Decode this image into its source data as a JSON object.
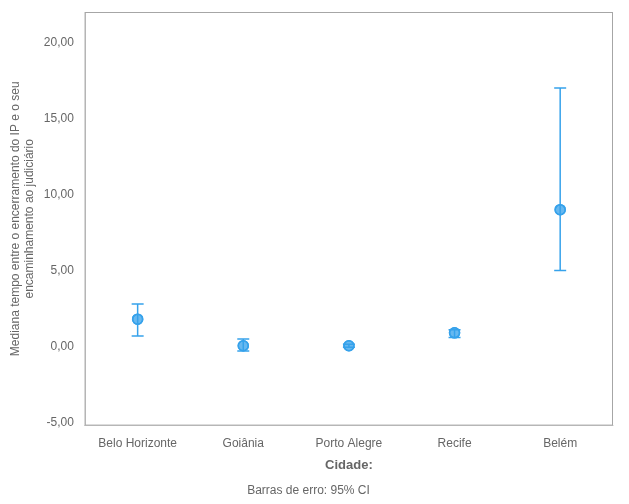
{
  "chart_data": {
    "type": "scatter",
    "categories": [
      "Belo Horizonte",
      "Goiânia",
      "Porto Alegre",
      "Recife",
      "Belém"
    ],
    "values": [
      1.8,
      0.05,
      0.05,
      0.9,
      9.0
    ],
    "ci_lower": [
      0.7,
      -0.3,
      -0.05,
      0.6,
      5.0
    ],
    "ci_upper": [
      2.8,
      0.5,
      0.15,
      1.1,
      17.0
    ],
    "xlabel": "Cidade:",
    "ylabel": "Mediana tempo entre o encerramento do IP e o seu\nencaminhamento ao judiciário",
    "footnote": "Barras de erro: 95% CI",
    "ylim": [
      -5.2,
      22.0
    ],
    "yticks": [
      {
        "value": -5.0,
        "label": "-5,00"
      },
      {
        "value": 0.0,
        "label": "0,00"
      },
      {
        "value": 5.0,
        "label": "5,00"
      },
      {
        "value": 10.0,
        "label": "10,00"
      },
      {
        "value": 15.0,
        "label": "15,00"
      },
      {
        "value": 20.0,
        "label": "20,00"
      }
    ],
    "grid": false,
    "marker": "circle"
  }
}
